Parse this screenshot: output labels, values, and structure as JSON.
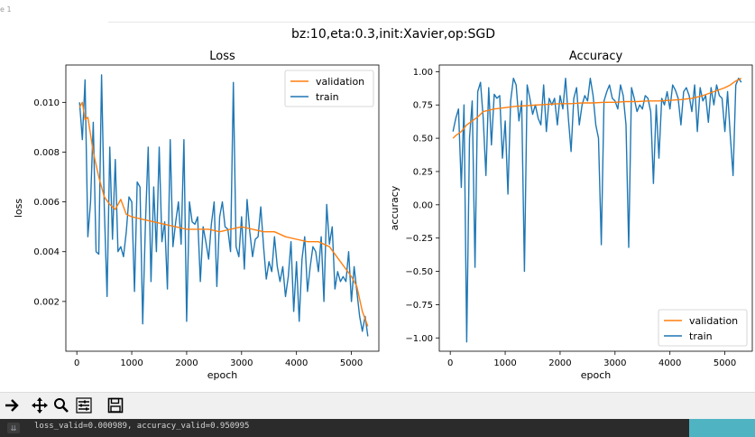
{
  "window": {
    "corner_label": "e 1"
  },
  "figure": {
    "suptitle": "bz:10,eta:0.3,init:Xavier,op:SGD"
  },
  "chart_data": [
    {
      "type": "line",
      "title": "Loss",
      "xlabel": "epoch",
      "ylabel": "loss",
      "xlim": [
        -200,
        5500
      ],
      "ylim": [
        0.0,
        0.0115
      ],
      "xticks": [
        0,
        1000,
        2000,
        3000,
        4000,
        5000
      ],
      "xtick_labels": [
        "0",
        "1000",
        "2000",
        "3000",
        "4000",
        "5000"
      ],
      "yticks": [
        0.002,
        0.004,
        0.006,
        0.008,
        0.01
      ],
      "ytick_labels": [
        "0.002",
        "0.004",
        "0.006",
        "0.008",
        "0.010"
      ],
      "legend_position": "top-right",
      "grid": false,
      "series": [
        {
          "name": "validation",
          "color": "#ff7f0e",
          "x": [
            50,
            100,
            150,
            200,
            250,
            300,
            400,
            500,
            600,
            700,
            800,
            900,
            1000,
            1200,
            1400,
            1600,
            1800,
            2000,
            2200,
            2400,
            2600,
            2800,
            3000,
            3200,
            3400,
            3600,
            3800,
            4000,
            4200,
            4400,
            4600,
            4800,
            5000,
            5100,
            5200,
            5300
          ],
          "y": [
            0.0098,
            0.01,
            0.0093,
            0.0094,
            0.0087,
            0.008,
            0.007,
            0.0062,
            0.0059,
            0.0057,
            0.0061,
            0.0055,
            0.0054,
            0.0053,
            0.0052,
            0.0051,
            0.005,
            0.0049,
            0.0049,
            0.0049,
            0.0048,
            0.0049,
            0.005,
            0.0049,
            0.0048,
            0.0048,
            0.0046,
            0.0045,
            0.0044,
            0.0044,
            0.0042,
            0.0036,
            0.003,
            0.0026,
            0.0016,
            0.001
          ]
        },
        {
          "name": "train",
          "color": "#1f77b4",
          "x": [
            50,
            100,
            150,
            200,
            250,
            300,
            350,
            400,
            450,
            500,
            550,
            600,
            650,
            700,
            750,
            800,
            850,
            900,
            950,
            1000,
            1050,
            1100,
            1150,
            1200,
            1250,
            1300,
            1350,
            1400,
            1450,
            1500,
            1550,
            1600,
            1650,
            1700,
            1750,
            1800,
            1850,
            1900,
            1950,
            2000,
            2050,
            2100,
            2150,
            2200,
            2250,
            2300,
            2350,
            2400,
            2450,
            2500,
            2550,
            2600,
            2650,
            2700,
            2750,
            2800,
            2850,
            2900,
            2950,
            3000,
            3050,
            3100,
            3150,
            3200,
            3250,
            3300,
            3350,
            3400,
            3450,
            3500,
            3550,
            3600,
            3650,
            3700,
            3750,
            3800,
            3850,
            3900,
            3950,
            4000,
            4050,
            4100,
            4150,
            4200,
            4250,
            4300,
            4350,
            4400,
            4450,
            4500,
            4550,
            4600,
            4650,
            4700,
            4750,
            4800,
            4850,
            4900,
            4950,
            5000,
            5050,
            5100,
            5150,
            5200,
            5250,
            5300
          ],
          "y": [
            0.01,
            0.0085,
            0.0109,
            0.0046,
            0.006,
            0.0092,
            0.004,
            0.0039,
            0.0111,
            0.0058,
            0.0022,
            0.0082,
            0.0045,
            0.0077,
            0.004,
            0.0042,
            0.0038,
            0.0048,
            0.0062,
            0.006,
            0.0024,
            0.0068,
            0.0066,
            0.0011,
            0.0052,
            0.0082,
            0.0028,
            0.0066,
            0.004,
            0.0082,
            0.0044,
            0.0052,
            0.0025,
            0.0085,
            0.0042,
            0.0052,
            0.006,
            0.0043,
            0.0085,
            0.0012,
            0.006,
            0.0052,
            0.0051,
            0.0054,
            0.0028,
            0.005,
            0.0044,
            0.0037,
            0.0051,
            0.006,
            0.0026,
            0.0054,
            0.006,
            0.005,
            0.0049,
            0.004,
            0.0108,
            0.0042,
            0.0038,
            0.0054,
            0.0033,
            0.0061,
            0.0048,
            0.0038,
            0.0045,
            0.0046,
            0.0058,
            0.0042,
            0.0029,
            0.0036,
            0.0032,
            0.0046,
            0.0034,
            0.0028,
            0.0034,
            0.0022,
            0.003,
            0.0044,
            0.0016,
            0.0036,
            0.0012,
            0.0037,
            0.0046,
            0.0024,
            0.0034,
            0.0042,
            0.004,
            0.0032,
            0.0046,
            0.002,
            0.0059,
            0.0043,
            0.005,
            0.0025,
            0.0032,
            0.0028,
            0.003,
            0.0028,
            0.004,
            0.002,
            0.0034,
            0.0024,
            0.0014,
            0.0008,
            0.0014,
            0.0006
          ]
        }
      ]
    },
    {
      "type": "line",
      "title": "Accuracy",
      "xlabel": "epoch",
      "ylabel": "accuracy",
      "xlim": [
        -200,
        5500
      ],
      "ylim": [
        -1.1,
        1.05
      ],
      "xticks": [
        0,
        1000,
        2000,
        3000,
        4000,
        5000
      ],
      "xtick_labels": [
        "0",
        "1000",
        "2000",
        "3000",
        "4000",
        "5000"
      ],
      "yticks": [
        -1.0,
        -0.75,
        -0.5,
        -0.25,
        0.0,
        0.25,
        0.5,
        0.75,
        1.0
      ],
      "ytick_labels": [
        "−1.00",
        "−0.75",
        "−0.50",
        "−0.25",
        "0.00",
        "0.25",
        "0.50",
        "0.75",
        "1.00"
      ],
      "legend_position": "bottom-right",
      "grid": false,
      "series": [
        {
          "name": "validation",
          "color": "#ff7f0e",
          "x": [
            50,
            100,
            200,
            300,
            400,
            500,
            600,
            800,
            1000,
            1200,
            1400,
            1600,
            1800,
            2000,
            2200,
            2400,
            2600,
            2800,
            3000,
            3200,
            3400,
            3600,
            3800,
            4000,
            4200,
            4400,
            4600,
            4800,
            5000,
            5100,
            5200,
            5300
          ],
          "y": [
            0.5,
            0.52,
            0.55,
            0.6,
            0.63,
            0.66,
            0.7,
            0.72,
            0.73,
            0.74,
            0.745,
            0.75,
            0.755,
            0.76,
            0.76,
            0.765,
            0.765,
            0.77,
            0.77,
            0.775,
            0.775,
            0.78,
            0.78,
            0.785,
            0.79,
            0.8,
            0.82,
            0.85,
            0.88,
            0.9,
            0.93,
            0.95
          ]
        },
        {
          "name": "train",
          "color": "#1f77b4",
          "x": [
            50,
            100,
            150,
            200,
            250,
            300,
            350,
            400,
            450,
            500,
            550,
            600,
            650,
            700,
            750,
            800,
            850,
            900,
            950,
            1000,
            1050,
            1100,
            1150,
            1200,
            1250,
            1300,
            1350,
            1400,
            1450,
            1500,
            1550,
            1600,
            1650,
            1700,
            1750,
            1800,
            1850,
            1900,
            1950,
            2000,
            2050,
            2100,
            2150,
            2200,
            2250,
            2300,
            2350,
            2400,
            2450,
            2500,
            2550,
            2600,
            2650,
            2700,
            2750,
            2800,
            2850,
            2900,
            2950,
            3000,
            3050,
            3100,
            3150,
            3200,
            3250,
            3300,
            3350,
            3400,
            3450,
            3500,
            3550,
            3600,
            3650,
            3700,
            3750,
            3800,
            3850,
            3900,
            3950,
            4000,
            4050,
            4100,
            4150,
            4200,
            4250,
            4300,
            4350,
            4400,
            4450,
            4500,
            4550,
            4600,
            4650,
            4700,
            4750,
            4800,
            4850,
            4900,
            4950,
            5000,
            5050,
            5100,
            5150,
            5200,
            5250,
            5300
          ],
          "y": [
            0.55,
            0.65,
            0.72,
            0.13,
            0.75,
            -1.03,
            0.5,
            0.78,
            -0.47,
            0.85,
            0.92,
            0.65,
            0.22,
            0.88,
            0.45,
            0.83,
            0.8,
            0.82,
            0.35,
            0.63,
            0.08,
            0.78,
            0.95,
            0.9,
            0.63,
            0.78,
            -0.5,
            0.9,
            0.8,
            0.68,
            0.75,
            0.65,
            0.6,
            0.9,
            0.55,
            0.8,
            0.75,
            0.8,
            0.6,
            0.82,
            0.72,
            0.95,
            0.65,
            0.4,
            0.8,
            0.88,
            0.6,
            0.75,
            0.82,
            0.78,
            0.95,
            0.82,
            0.6,
            0.5,
            -0.3,
            0.78,
            0.85,
            0.9,
            0.8,
            0.78,
            0.72,
            0.9,
            0.82,
            0.6,
            -0.32,
            0.88,
            0.8,
            0.7,
            0.75,
            0.72,
            0.82,
            0.8,
            0.7,
            0.16,
            0.75,
            0.35,
            0.8,
            0.75,
            0.85,
            0.72,
            0.9,
            0.86,
            0.8,
            0.6,
            0.85,
            0.88,
            0.82,
            0.7,
            0.9,
            0.55,
            0.88,
            0.78,
            0.82,
            0.62,
            0.88,
            0.75,
            0.9,
            0.82,
            0.8,
            0.55,
            0.85,
            0.52,
            0.22,
            0.9,
            0.95,
            0.92
          ]
        }
      ]
    }
  ],
  "toolbar": {
    "icons": [
      "forward-icon",
      "pan-icon",
      "zoom-icon",
      "configure-icon",
      "save-icon"
    ]
  },
  "console": {
    "gutter_label": "⇊",
    "text": "loss_valid=0.000989, accuracy_valid=0.950995"
  }
}
